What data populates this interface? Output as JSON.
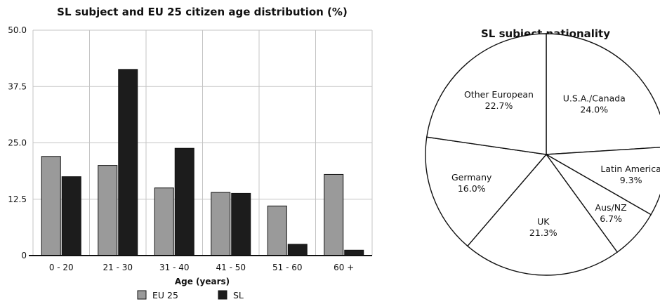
{
  "chart_data": [
    {
      "type": "bar",
      "title": "SL subject and EU 25 citizen age distribution (%)",
      "xlabel": "Age (years)",
      "ylabel": "",
      "ylim": [
        0,
        50
      ],
      "yticks": [
        "0",
        "12.5",
        "25.0",
        "37.5",
        "50.0"
      ],
      "categories": [
        "0 - 20",
        "21 - 30",
        "31 - 40",
        "41 - 50",
        "51 - 60",
        "60 +"
      ],
      "series": [
        {
          "name": "EU 25",
          "color": "#9a9a9a",
          "values": [
            22,
            20,
            15,
            14,
            11,
            18
          ]
        },
        {
          "name": "SL",
          "color": "#1c1c1c",
          "values": [
            17.5,
            41.3,
            23.8,
            13.8,
            2.5,
            1.2
          ]
        }
      ],
      "grid": true,
      "legend": "bottom"
    },
    {
      "type": "pie",
      "title": "SL subject nationality",
      "slices": [
        {
          "label": "U.S.A./Canada",
          "value_text": "24.0%",
          "value": 24.0
        },
        {
          "label": "Latin America",
          "value_text": "9.3%",
          "value": 9.3
        },
        {
          "label": "Aus/NZ",
          "value_text": "6.7%",
          "value": 6.7
        },
        {
          "label": "UK",
          "value_text": "21.3%",
          "value": 21.3
        },
        {
          "label": "Germany",
          "value_text": "16.0%",
          "value": 16.0
        },
        {
          "label": "Other European",
          "value_text": "22.7%",
          "value": 22.7
        }
      ]
    }
  ]
}
